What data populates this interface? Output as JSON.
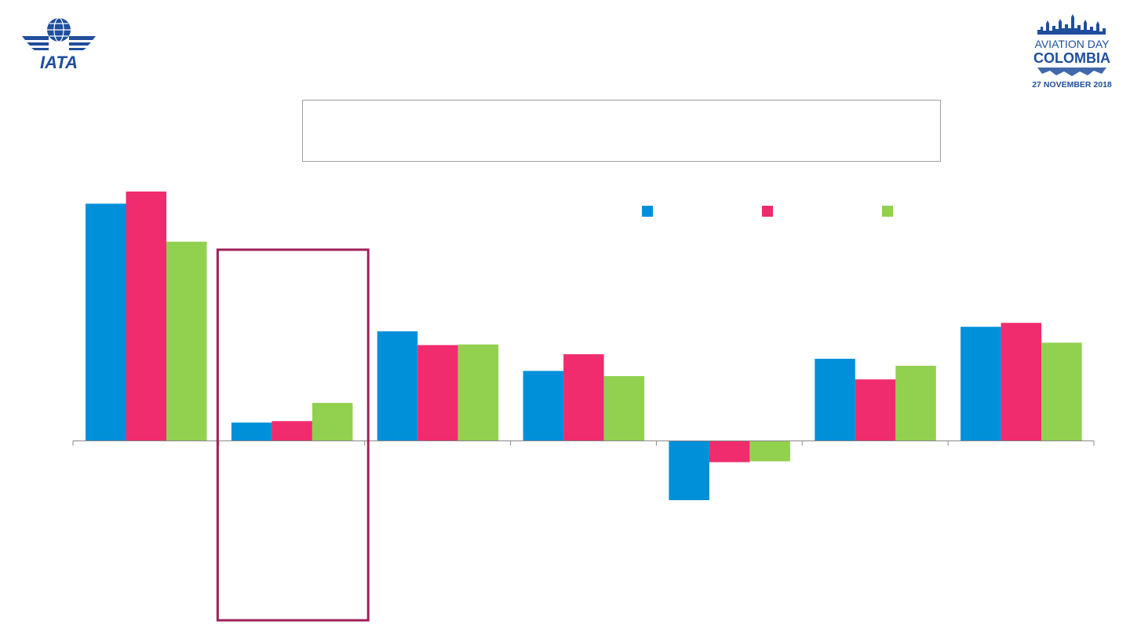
{
  "branding": {
    "iata_logo_text": "IATA",
    "event_logo": {
      "line1": "AVIATION DAY",
      "line2": "COLOMBIA",
      "line3": "27 NOVEMBER 2018"
    }
  },
  "colors": {
    "logo_blue": "#1f4e9c",
    "highlight_frame": "#a0205a",
    "axis": "#888888"
  },
  "chart_data": {
    "type": "bar",
    "categories": [
      "",
      "",
      "",
      "",
      "",
      "",
      ""
    ],
    "series": [
      {
        "color": "#0090da",
        "values": [
          7.8,
          0.6,
          3.6,
          2.3,
          -1.95,
          2.7,
          3.75
        ]
      },
      {
        "color": "#f02b6e",
        "values": [
          8.2,
          0.65,
          3.15,
          2.85,
          -0.7,
          2.02,
          3.88
        ]
      },
      {
        "color": "#92d050",
        "values": [
          6.55,
          1.25,
          3.17,
          2.13,
          -0.67,
          2.47,
          3.23
        ]
      }
    ],
    "ylim": [
      -5.9,
      8.3
    ],
    "grid": false,
    "legend_position": "top-right",
    "highlight_category_index": 1
  }
}
